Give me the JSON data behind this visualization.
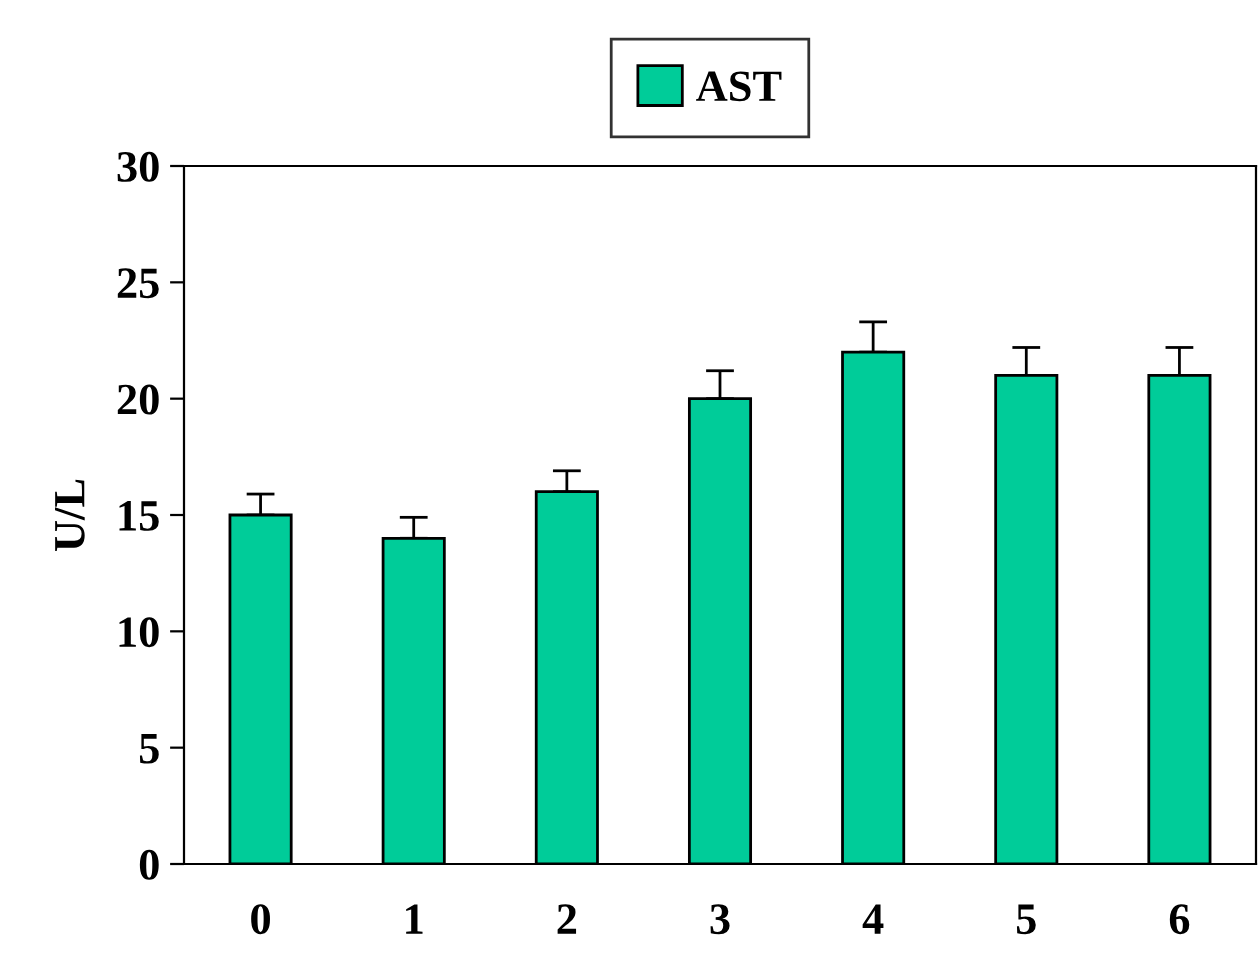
{
  "chart_data": {
    "type": "bar",
    "ylabel": "U/L",
    "categories": [
      "0",
      "1",
      "2",
      "3",
      "4",
      "5",
      "6"
    ],
    "series": [
      {
        "name": "AST",
        "color": "#00cc99",
        "values": [
          15,
          14,
          16,
          20,
          22,
          21,
          21
        ],
        "errors": [
          0.9,
          0.9,
          0.9,
          1.2,
          1.3,
          1.2,
          1.2
        ]
      }
    ],
    "ylim": [
      0,
      30
    ],
    "yticks": [
      0,
      5,
      10,
      15,
      20,
      25,
      30
    ],
    "grid": false,
    "legend": "top"
  }
}
